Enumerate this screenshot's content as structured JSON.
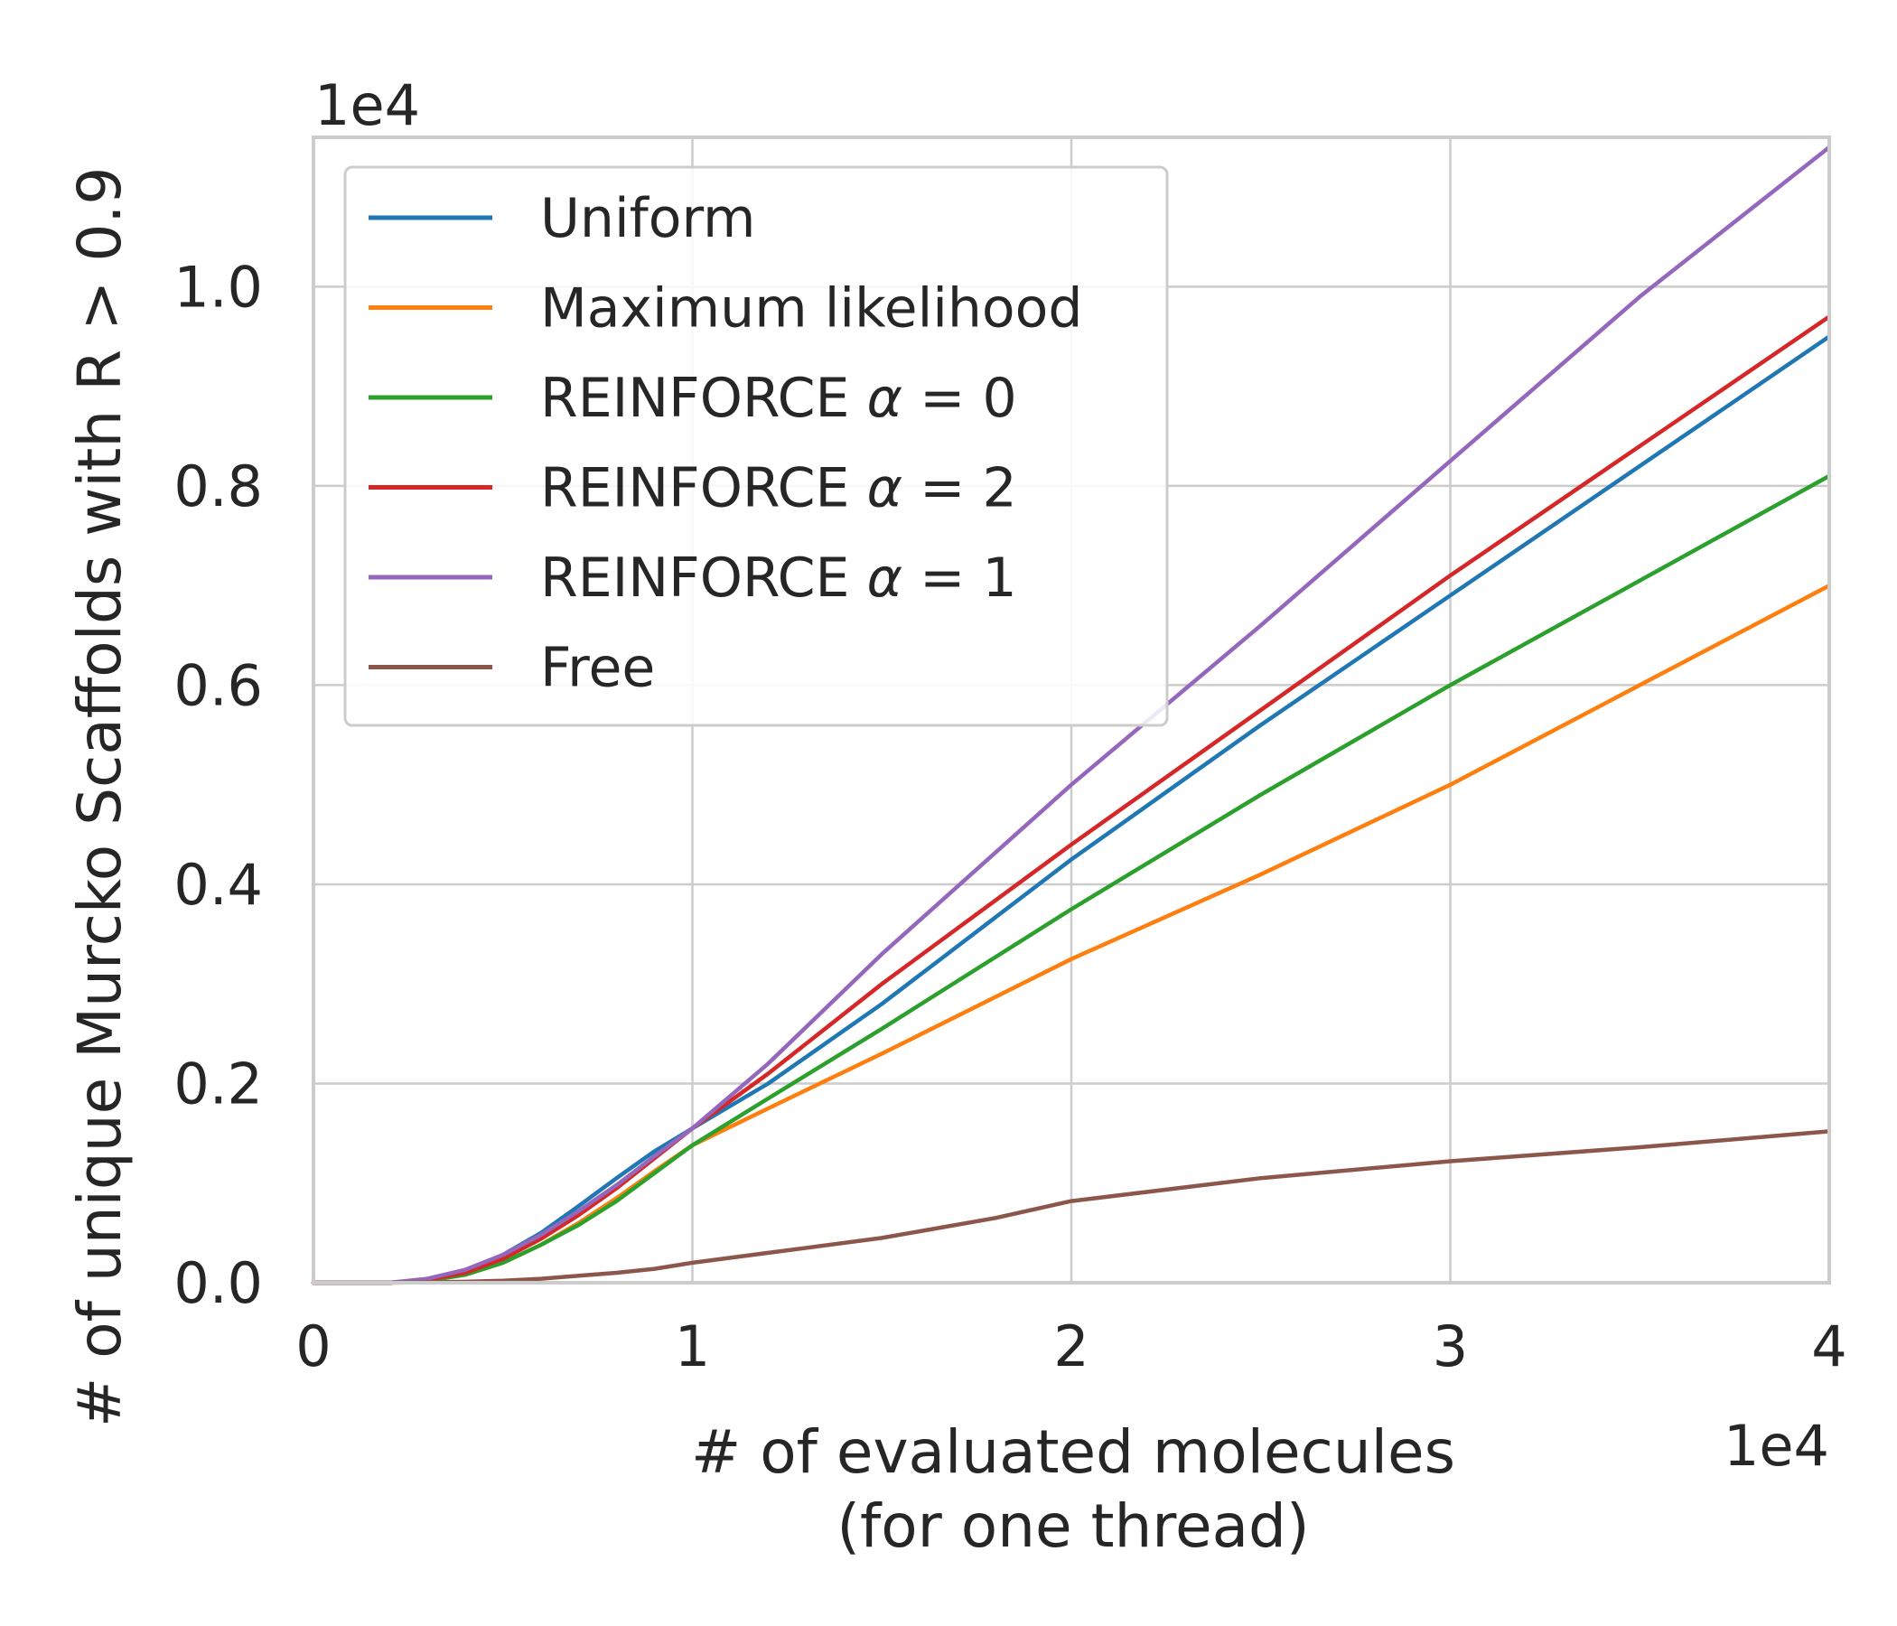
{
  "chart_data": {
    "type": "line",
    "xlabel_line1": "# of evaluated molecules",
    "xlabel_line2": "(for one thread)",
    "ylabel": "# of unique Murcko Scaffolds with R > 0.9",
    "x_offset_label": "1e4",
    "y_offset_label": "1e4",
    "xlim": [
      0,
      4
    ],
    "ylim": [
      0,
      1.15
    ],
    "x_ticks": [
      0,
      1,
      2,
      3,
      4
    ],
    "x_tick_labels": [
      "0",
      "1",
      "2",
      "3",
      "4"
    ],
    "y_ticks": [
      0,
      0.2,
      0.4,
      0.6,
      0.8,
      1.0
    ],
    "y_tick_labels": [
      "0.0",
      "0.2",
      "0.4",
      "0.6",
      "0.8",
      "1.0"
    ],
    "grid": true,
    "legend_position": "upper-left",
    "series": [
      {
        "name": "Uniform",
        "color": "#1f77b4",
        "x": [
          0,
          0.2,
          0.3,
          0.4,
          0.5,
          0.6,
          0.7,
          0.8,
          0.9,
          1.0,
          1.2,
          1.5,
          2.0,
          2.5,
          3.0,
          3.5,
          4.0
        ],
        "y": [
          0,
          0,
          0.003,
          0.012,
          0.028,
          0.05,
          0.077,
          0.105,
          0.132,
          0.155,
          0.2,
          0.28,
          0.425,
          0.56,
          0.69,
          0.82,
          0.95
        ]
      },
      {
        "name": "Maximum likelihood",
        "color": "#ff7f0e",
        "x": [
          0,
          0.2,
          0.3,
          0.4,
          0.5,
          0.6,
          0.7,
          0.8,
          0.9,
          1.0,
          1.2,
          1.5,
          2.0,
          2.5,
          3.0,
          3.5,
          4.0
        ],
        "y": [
          0,
          0,
          0.002,
          0.008,
          0.02,
          0.038,
          0.06,
          0.085,
          0.112,
          0.138,
          0.175,
          0.23,
          0.325,
          0.41,
          0.5,
          0.6,
          0.7
        ]
      },
      {
        "name": "REINFORCE $\\alpha = 0$",
        "label_prefix": "REINFORCE ",
        "label_alpha": "α",
        "label_rest": " = 0",
        "color": "#2ca02c",
        "x": [
          0,
          0.2,
          0.3,
          0.4,
          0.5,
          0.6,
          0.7,
          0.8,
          0.9,
          1.0,
          1.2,
          1.5,
          2.0,
          2.5,
          3.0,
          3.5,
          4.0
        ],
        "y": [
          0,
          0,
          0.002,
          0.008,
          0.02,
          0.038,
          0.058,
          0.082,
          0.11,
          0.138,
          0.185,
          0.255,
          0.375,
          0.49,
          0.6,
          0.705,
          0.81
        ]
      },
      {
        "name": "REINFORCE $\\alpha = 2$",
        "label_prefix": "REINFORCE ",
        "label_alpha": "α",
        "label_rest": " = 2",
        "color": "#d62728",
        "x": [
          0,
          0.2,
          0.3,
          0.4,
          0.5,
          0.6,
          0.7,
          0.8,
          0.9,
          1.0,
          1.2,
          1.5,
          2.0,
          2.5,
          3.0,
          3.5,
          4.0
        ],
        "y": [
          0,
          0,
          0.003,
          0.01,
          0.024,
          0.044,
          0.068,
          0.095,
          0.125,
          0.155,
          0.21,
          0.3,
          0.44,
          0.575,
          0.71,
          0.84,
          0.97
        ]
      },
      {
        "name": "REINFORCE $\\alpha = 1$",
        "label_prefix": "REINFORCE ",
        "label_alpha": "α",
        "label_rest": " = 1",
        "color": "#9467bd",
        "x": [
          0,
          0.2,
          0.3,
          0.4,
          0.5,
          0.6,
          0.7,
          0.8,
          0.9,
          1.0,
          1.2,
          1.5,
          2.0,
          2.5,
          3.0,
          3.5,
          4.0
        ],
        "y": [
          0,
          0,
          0.004,
          0.013,
          0.028,
          0.048,
          0.072,
          0.098,
          0.127,
          0.155,
          0.22,
          0.33,
          0.5,
          0.66,
          0.825,
          0.99,
          1.14
        ]
      },
      {
        "name": "Free",
        "color": "#8c564b",
        "x": [
          0,
          0.2,
          0.3,
          0.4,
          0.5,
          0.6,
          0.7,
          0.8,
          0.9,
          1.0,
          1.2,
          1.5,
          1.8,
          2.0,
          2.5,
          3.0,
          3.5,
          4.0
        ],
        "y": [
          0,
          0,
          0.0005,
          0.001,
          0.002,
          0.004,
          0.007,
          0.01,
          0.014,
          0.02,
          0.03,
          0.045,
          0.065,
          0.082,
          0.105,
          0.122,
          0.136,
          0.152
        ]
      }
    ]
  }
}
